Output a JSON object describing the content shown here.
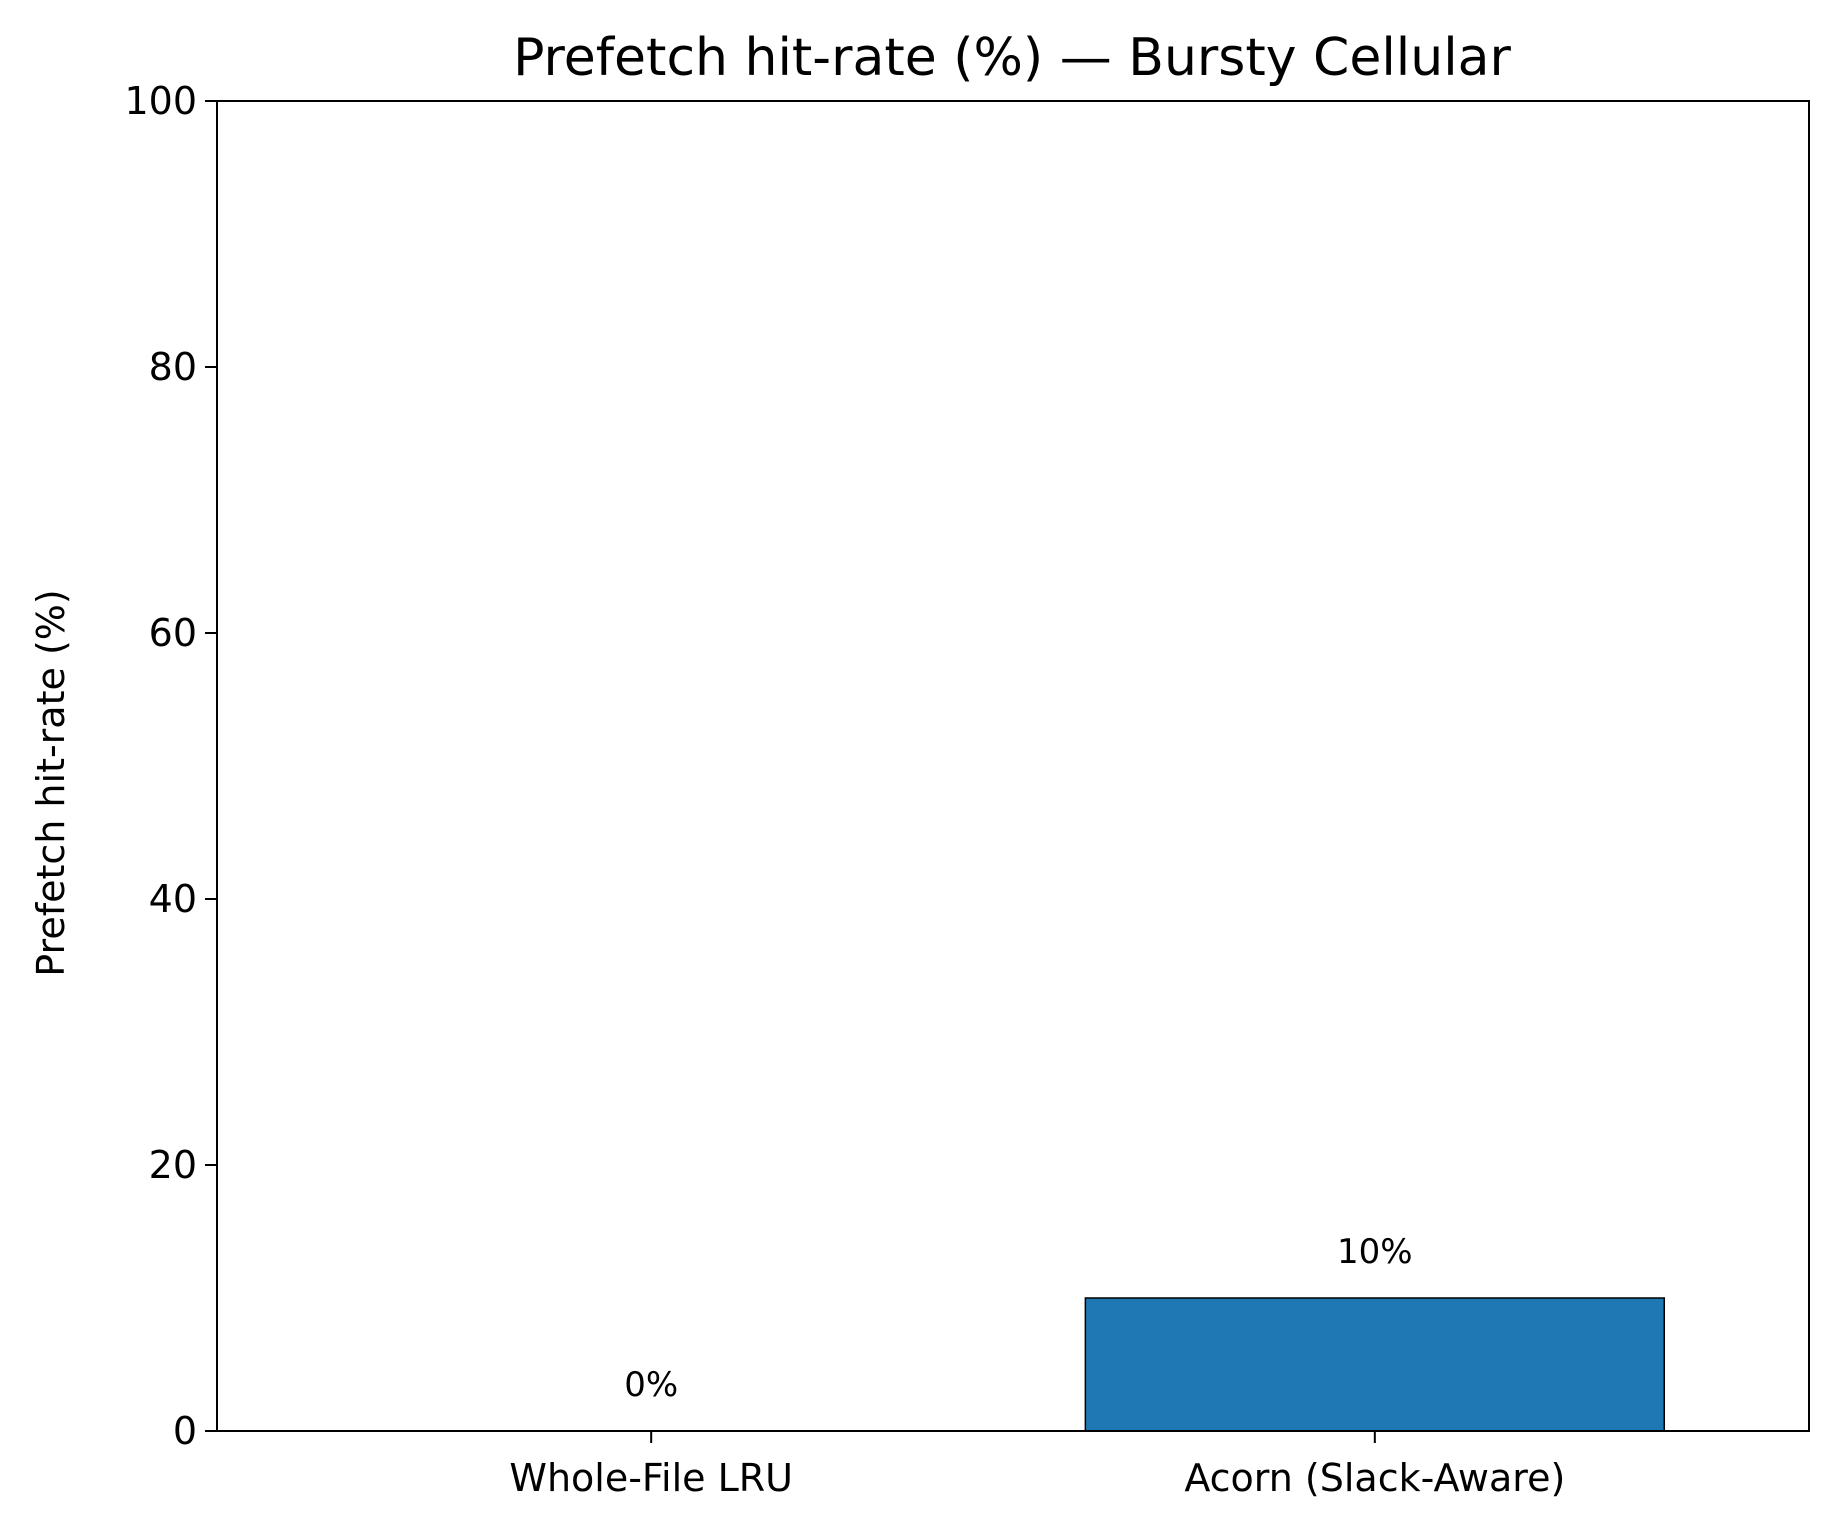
{
  "chart_data": {
    "type": "bar",
    "title": "Prefetch hit-rate (%) — Bursty Cellular",
    "xlabel": "",
    "ylabel": "Prefetch hit-rate (%)",
    "categories": [
      "Whole-File LRU",
      "Acorn (Slack-Aware)"
    ],
    "values": [
      0,
      10
    ],
    "data_labels": [
      "0%",
      "10%"
    ],
    "ylim": [
      0,
      100
    ],
    "yticks": [
      0,
      20,
      40,
      60,
      80,
      100
    ],
    "ytick_labels": [
      "0",
      "20",
      "40",
      "60",
      "80",
      "100"
    ],
    "grid": false,
    "legend": "none",
    "bar_color": "#1f77b4",
    "bar_edge_color": "#000000"
  }
}
